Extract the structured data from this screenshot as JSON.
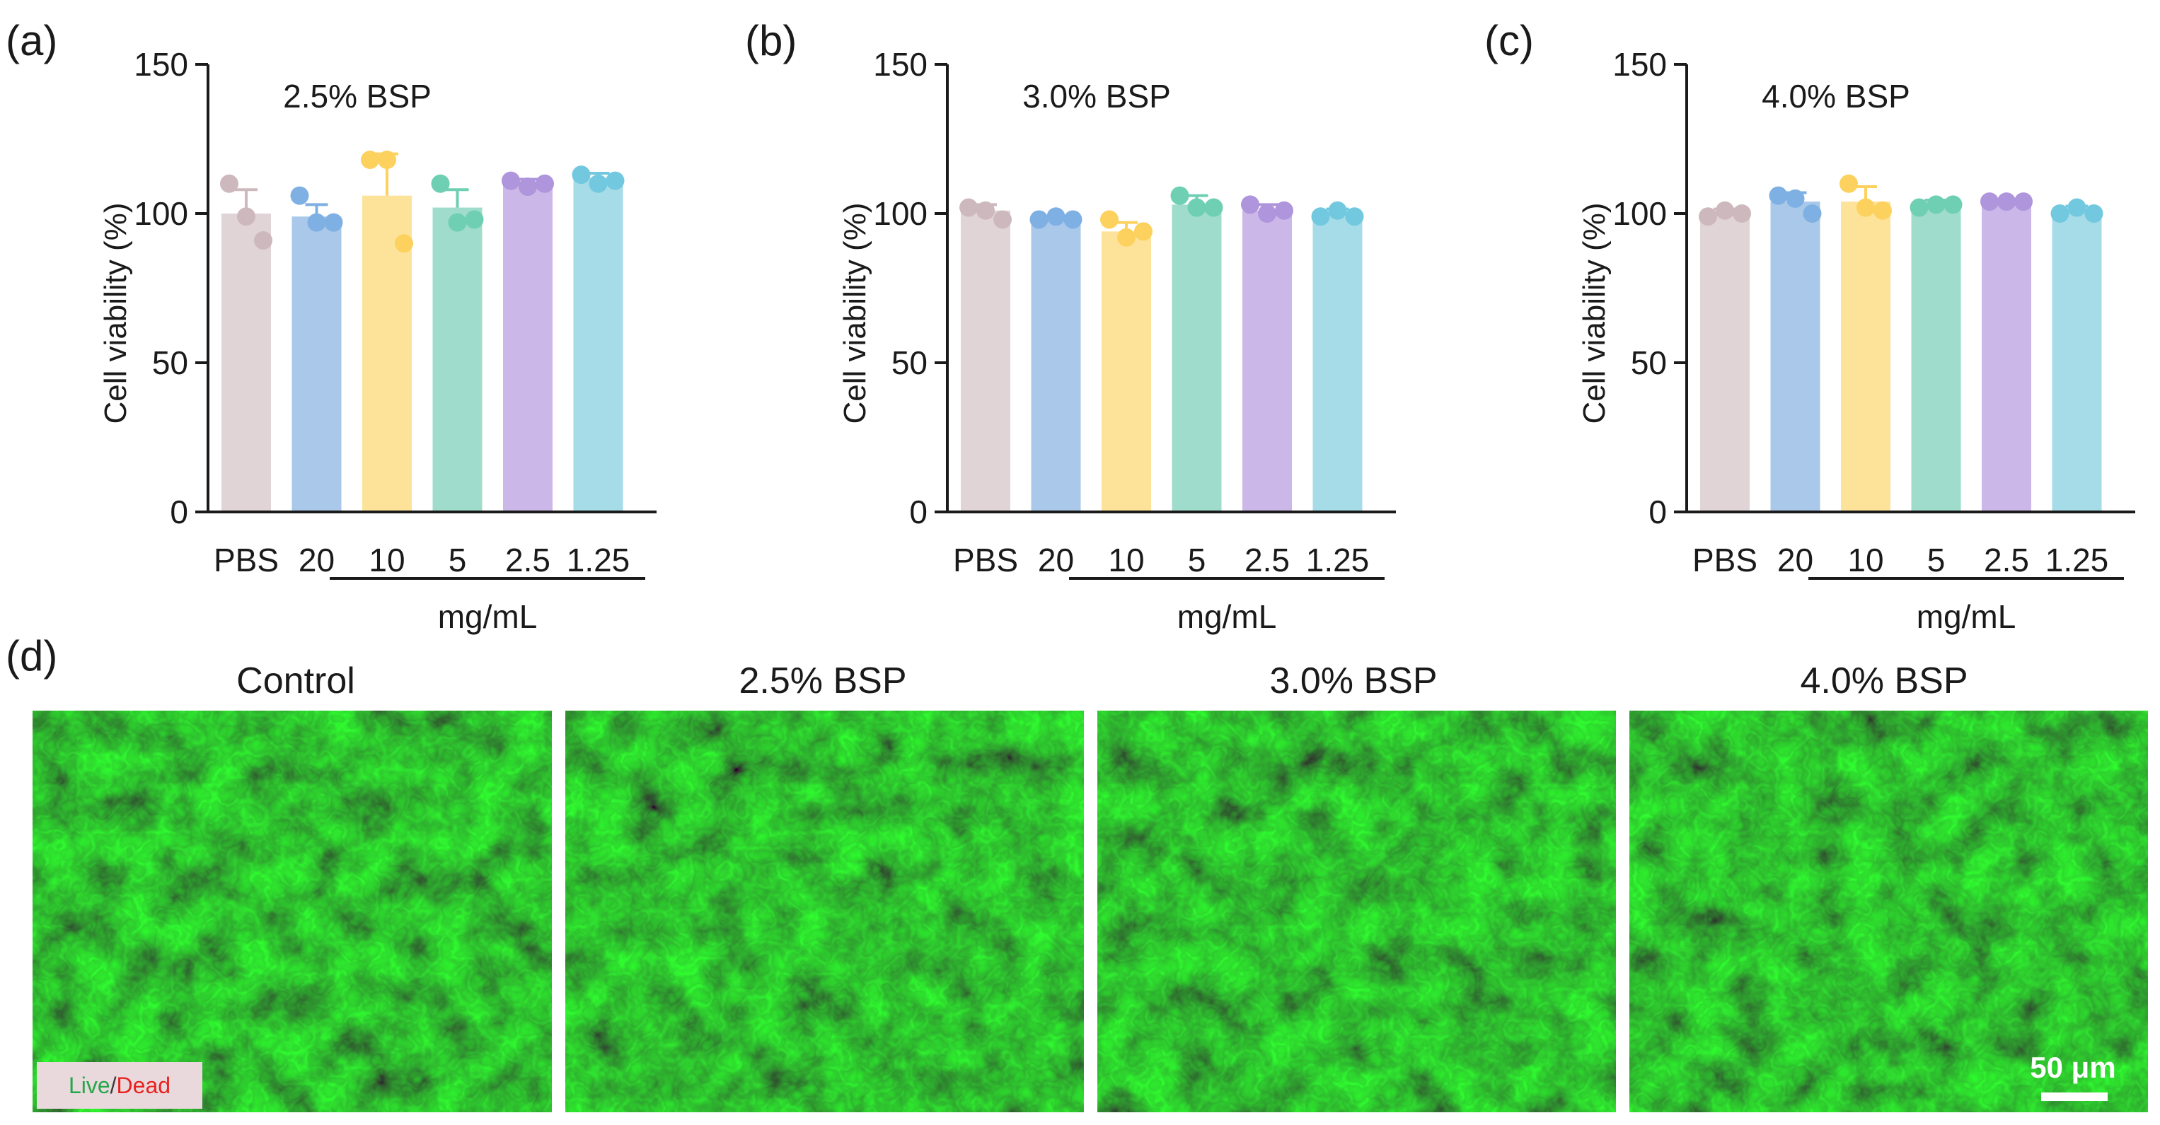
{
  "chart_data": [
    {
      "type": "bar",
      "panel": "(a)",
      "title": "2.5% BSP",
      "ylabel": "Cell viability (%)",
      "xlabel": "mg/mL",
      "ylim": [
        0,
        150
      ],
      "yticks": [
        0,
        50,
        100,
        150
      ],
      "categories": [
        "PBS",
        "20",
        "10",
        "5",
        "2.5",
        "1.25"
      ],
      "values": [
        100,
        99,
        106,
        102,
        110,
        112
      ],
      "errors": [
        8,
        4,
        14,
        6,
        1.5,
        1.5
      ],
      "points": [
        [
          110,
          99,
          91
        ],
        [
          106,
          97,
          97
        ],
        [
          118,
          118,
          90
        ],
        [
          110,
          97,
          98
        ],
        [
          111,
          109,
          110
        ],
        [
          113,
          110,
          111
        ]
      ],
      "colors": [
        "#e1d4d7",
        "#a9c8ea",
        "#fde39a",
        "#9fdccb",
        "#cbb7e8",
        "#a6dbe8"
      ],
      "point_colors": [
        "#cdb9bd",
        "#7fb0e3",
        "#fcd15e",
        "#6fcfb3",
        "#ae95dc",
        "#72c9df"
      ]
    },
    {
      "type": "bar",
      "panel": "(b)",
      "title": "3.0% BSP",
      "ylabel": "Cell viability (%)",
      "xlabel": "mg/mL",
      "ylim": [
        0,
        150
      ],
      "yticks": [
        0,
        50,
        100,
        150
      ],
      "categories": [
        "PBS",
        "20",
        "10",
        "5",
        "2.5",
        "1.25"
      ],
      "values": [
        101,
        98,
        94,
        103,
        101,
        100
      ],
      "errors": [
        2,
        1,
        3,
        3,
        2,
        1.5
      ],
      "points": [
        [
          102,
          101,
          98
        ],
        [
          98,
          99,
          98
        ],
        [
          98,
          92,
          94
        ],
        [
          106,
          102,
          102
        ],
        [
          103,
          100,
          101
        ],
        [
          99,
          101,
          99
        ]
      ],
      "colors": [
        "#e1d4d7",
        "#a9c8ea",
        "#fde39a",
        "#9fdccb",
        "#cbb7e8",
        "#a6dbe8"
      ],
      "point_colors": [
        "#cdb9bd",
        "#7fb0e3",
        "#fcd15e",
        "#6fcfb3",
        "#ae95dc",
        "#72c9df"
      ]
    },
    {
      "type": "bar",
      "panel": "(c)",
      "title": "4.0% BSP",
      "ylabel": "Cell viability (%)",
      "xlabel": "mg/mL",
      "ylim": [
        0,
        150
      ],
      "yticks": [
        0,
        50,
        100,
        150
      ],
      "categories": [
        "PBS",
        "20",
        "10",
        "5",
        "2.5",
        "1.25"
      ],
      "values": [
        100,
        104,
        104,
        103,
        104,
        101
      ],
      "errors": [
        1.5,
        3,
        5,
        1.5,
        0.8,
        1.5
      ],
      "points": [
        [
          99,
          101,
          100
        ],
        [
          106,
          105,
          100
        ],
        [
          110,
          102,
          101
        ],
        [
          102,
          103,
          103
        ],
        [
          104,
          104,
          104
        ],
        [
          100,
          102,
          100
        ]
      ],
      "colors": [
        "#e1d4d7",
        "#a9c8ea",
        "#fde39a",
        "#9fdccb",
        "#cbb7e8",
        "#a6dbe8"
      ],
      "point_colors": [
        "#cdb9bd",
        "#7fb0e3",
        "#fcd15e",
        "#6fcfb3",
        "#ae95dc",
        "#72c9df"
      ]
    }
  ],
  "micrographs": {
    "panel": "(d)",
    "titles": [
      "Control",
      "2.5% BSP",
      "3.0% BSP",
      "4.0% BSP"
    ],
    "legend": {
      "live": "Live",
      "separator": "/",
      "dead": "Dead",
      "live_color": "#22a84a",
      "dead_color": "#e8231f"
    },
    "scale_bar": "50 μm",
    "image_color": "#1fd11f"
  }
}
